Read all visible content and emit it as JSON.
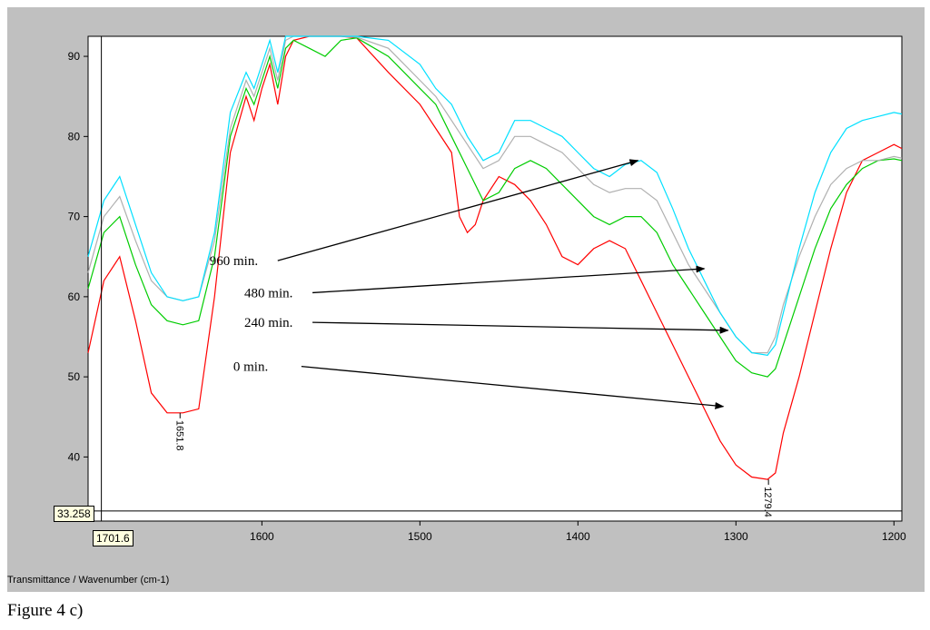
{
  "chart_data": {
    "type": "line",
    "title": "",
    "xlabel": "Transmittance / Wavenumber (cm-1)",
    "ylabel": "",
    "xlim": [
      1710,
      1195
    ],
    "ylim": [
      32,
      92.5
    ],
    "x_ticks": [
      1600,
      1500,
      1400,
      1300,
      1200
    ],
    "y_ticks": [
      40,
      50,
      60,
      70,
      80,
      90
    ],
    "grid": false,
    "cursor": {
      "x": 1701.6,
      "x_label": "1701.6",
      "y": 33.258,
      "y_label": "33.258"
    },
    "peak_labels": [
      {
        "x": 1651.8,
        "y": 45.5,
        "text": "1651.8"
      },
      {
        "x": 1279.4,
        "y": 37.2,
        "text": "1279.4"
      }
    ],
    "annotations": [
      {
        "text": "960 min.",
        "arrow_from": [
          1590,
          64.5
        ],
        "arrow_to": [
          1362,
          77.0
        ]
      },
      {
        "text": "480 min.",
        "arrow_from": [
          1568,
          60.5
        ],
        "arrow_to": [
          1320,
          63.5
        ]
      },
      {
        "text": "240 min.",
        "arrow_from": [
          1568,
          56.8
        ],
        "arrow_to": [
          1305,
          55.8
        ]
      },
      {
        "text": "0 min.",
        "arrow_from": [
          1575,
          51.3
        ],
        "arrow_to": [
          1308,
          46.3
        ]
      }
    ],
    "series": [
      {
        "color": "#ff0000",
        "x": [
          1710,
          1700,
          1690,
          1680,
          1670,
          1660,
          1650,
          1640,
          1630,
          1620,
          1610,
          1605,
          1600,
          1595,
          1590,
          1585,
          1580,
          1570,
          1560,
          1550,
          1540,
          1520,
          1500,
          1490,
          1480,
          1475,
          1470,
          1465,
          1460,
          1450,
          1440,
          1430,
          1420,
          1410,
          1400,
          1390,
          1380,
          1370,
          1360,
          1350,
          1340,
          1330,
          1320,
          1310,
          1300,
          1290,
          1280,
          1275,
          1270,
          1260,
          1250,
          1240,
          1230,
          1220,
          1210,
          1200,
          1195
        ],
        "y": [
          53,
          62,
          65,
          57,
          48,
          45.5,
          45.5,
          46,
          60,
          78,
          85,
          82,
          86,
          89,
          84,
          90,
          92,
          92.5,
          92.5,
          92.5,
          92.3,
          88,
          84,
          81,
          78,
          70,
          68,
          69,
          72,
          75,
          74,
          72,
          69,
          65,
          64,
          66,
          67,
          66,
          62,
          58,
          54,
          50,
          46,
          42,
          39,
          37.5,
          37.2,
          38,
          43,
          50,
          58,
          66,
          73,
          77,
          78,
          79,
          78.5
        ]
      },
      {
        "color": "#00cc00",
        "x": [
          1710,
          1700,
          1690,
          1680,
          1670,
          1660,
          1650,
          1640,
          1630,
          1620,
          1610,
          1605,
          1600,
          1595,
          1590,
          1585,
          1580,
          1570,
          1560,
          1550,
          1540,
          1520,
          1500,
          1490,
          1480,
          1470,
          1460,
          1450,
          1440,
          1430,
          1420,
          1410,
          1400,
          1390,
          1380,
          1370,
          1360,
          1350,
          1340,
          1330,
          1320,
          1310,
          1300,
          1290,
          1280,
          1275,
          1270,
          1260,
          1250,
          1240,
          1230,
          1220,
          1210,
          1200,
          1195
        ],
        "y": [
          61,
          68,
          70,
          64,
          59,
          57,
          56.5,
          57,
          65,
          80,
          86,
          84,
          87,
          90,
          86,
          91,
          92,
          91,
          90,
          92,
          92.3,
          90,
          86,
          84,
          80,
          76,
          72,
          73,
          76,
          77,
          76,
          74,
          72,
          70,
          69,
          70,
          70,
          68,
          64,
          61,
          58,
          55,
          52,
          50.5,
          50,
          51,
          54,
          60,
          66,
          71,
          74,
          76,
          77,
          77.2,
          77
        ]
      },
      {
        "color": "#b0b0b0",
        "x": [
          1710,
          1700,
          1690,
          1680,
          1670,
          1660,
          1650,
          1640,
          1630,
          1620,
          1610,
          1605,
          1600,
          1595,
          1590,
          1585,
          1580,
          1570,
          1560,
          1550,
          1540,
          1520,
          1500,
          1490,
          1480,
          1470,
          1460,
          1450,
          1440,
          1430,
          1420,
          1410,
          1400,
          1390,
          1380,
          1370,
          1360,
          1350,
          1340,
          1330,
          1320,
          1310,
          1300,
          1290,
          1280,
          1275,
          1270,
          1260,
          1250,
          1240,
          1230,
          1220,
          1210,
          1200,
          1195
        ],
        "y": [
          63,
          70,
          72.5,
          67,
          62,
          60,
          59.5,
          60,
          67,
          81,
          87,
          85,
          88,
          91,
          87,
          92,
          92.5,
          92.5,
          92.5,
          92.5,
          92.4,
          91,
          87,
          85,
          82,
          79,
          76,
          77,
          80,
          80,
          79,
          78,
          76,
          74,
          73,
          73.5,
          73.5,
          72,
          68,
          64,
          61,
          58,
          55,
          53,
          53,
          55,
          59,
          65,
          70,
          74,
          76,
          77,
          77,
          77.5,
          77.3
        ]
      },
      {
        "color": "#00e0ff",
        "x": [
          1710,
          1700,
          1690,
          1680,
          1670,
          1660,
          1650,
          1640,
          1630,
          1620,
          1610,
          1605,
          1600,
          1595,
          1590,
          1585,
          1580,
          1570,
          1560,
          1550,
          1540,
          1520,
          1500,
          1490,
          1480,
          1470,
          1460,
          1450,
          1440,
          1430,
          1420,
          1410,
          1400,
          1390,
          1380,
          1370,
          1360,
          1350,
          1340,
          1330,
          1320,
          1310,
          1300,
          1290,
          1280,
          1275,
          1270,
          1260,
          1250,
          1240,
          1230,
          1220,
          1210,
          1200,
          1195
        ],
        "y": [
          65,
          72,
          75,
          69,
          63,
          60,
          59.5,
          60,
          68,
          83,
          88,
          86,
          89,
          92,
          88,
          92.5,
          92.5,
          92.5,
          92.5,
          92.5,
          92.5,
          92,
          89,
          86,
          84,
          80,
          77,
          78,
          82,
          82,
          81,
          80,
          78,
          76,
          75,
          76.5,
          77,
          75.5,
          71,
          66,
          62,
          58,
          55,
          53,
          52.7,
          54,
          58,
          66,
          73,
          78,
          81,
          82,
          82.5,
          83,
          82.8
        ]
      }
    ]
  },
  "readouts": {
    "x_value": "1701.6",
    "y_value": "33.258"
  },
  "axis_title": "Transmittance / Wavenumber (cm-1)",
  "caption": "Figure 4 c)"
}
